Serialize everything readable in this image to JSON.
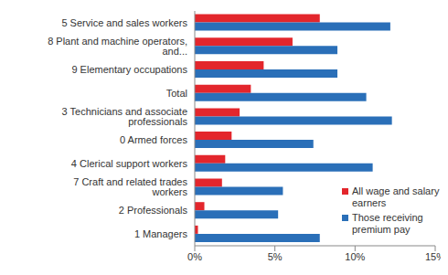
{
  "chart_data": {
    "type": "bar",
    "orientation": "horizontal",
    "categories": [
      "5 Service and sales workers",
      "8 Plant and machine operators, and...",
      "9 Elementary occupations",
      "Total",
      "3 Technicians and associate professionals",
      "0 Armed forces",
      "4 Clerical support workers",
      "7 Craft and related trades workers",
      "2 Professionals",
      "1 Managers"
    ],
    "series": [
      {
        "name": "All wage and salary earners",
        "color": "#e3262c",
        "values": [
          7.8,
          6.1,
          4.3,
          3.5,
          2.8,
          2.3,
          1.9,
          1.7,
          0.6,
          0.2
        ]
      },
      {
        "name": "Those receiving premium pay",
        "color": "#2a6fb8",
        "values": [
          12.2,
          8.9,
          8.9,
          10.7,
          12.3,
          7.4,
          11.1,
          5.5,
          5.2,
          7.8
        ]
      }
    ],
    "xlim": [
      0,
      15
    ],
    "xticks": [
      {
        "value": 0,
        "label": "0%"
      },
      {
        "value": 5,
        "label": "5%"
      },
      {
        "value": 10,
        "label": "10%"
      },
      {
        "value": 15,
        "label": "15%"
      }
    ],
    "grid": false,
    "legend": "bottom right"
  }
}
